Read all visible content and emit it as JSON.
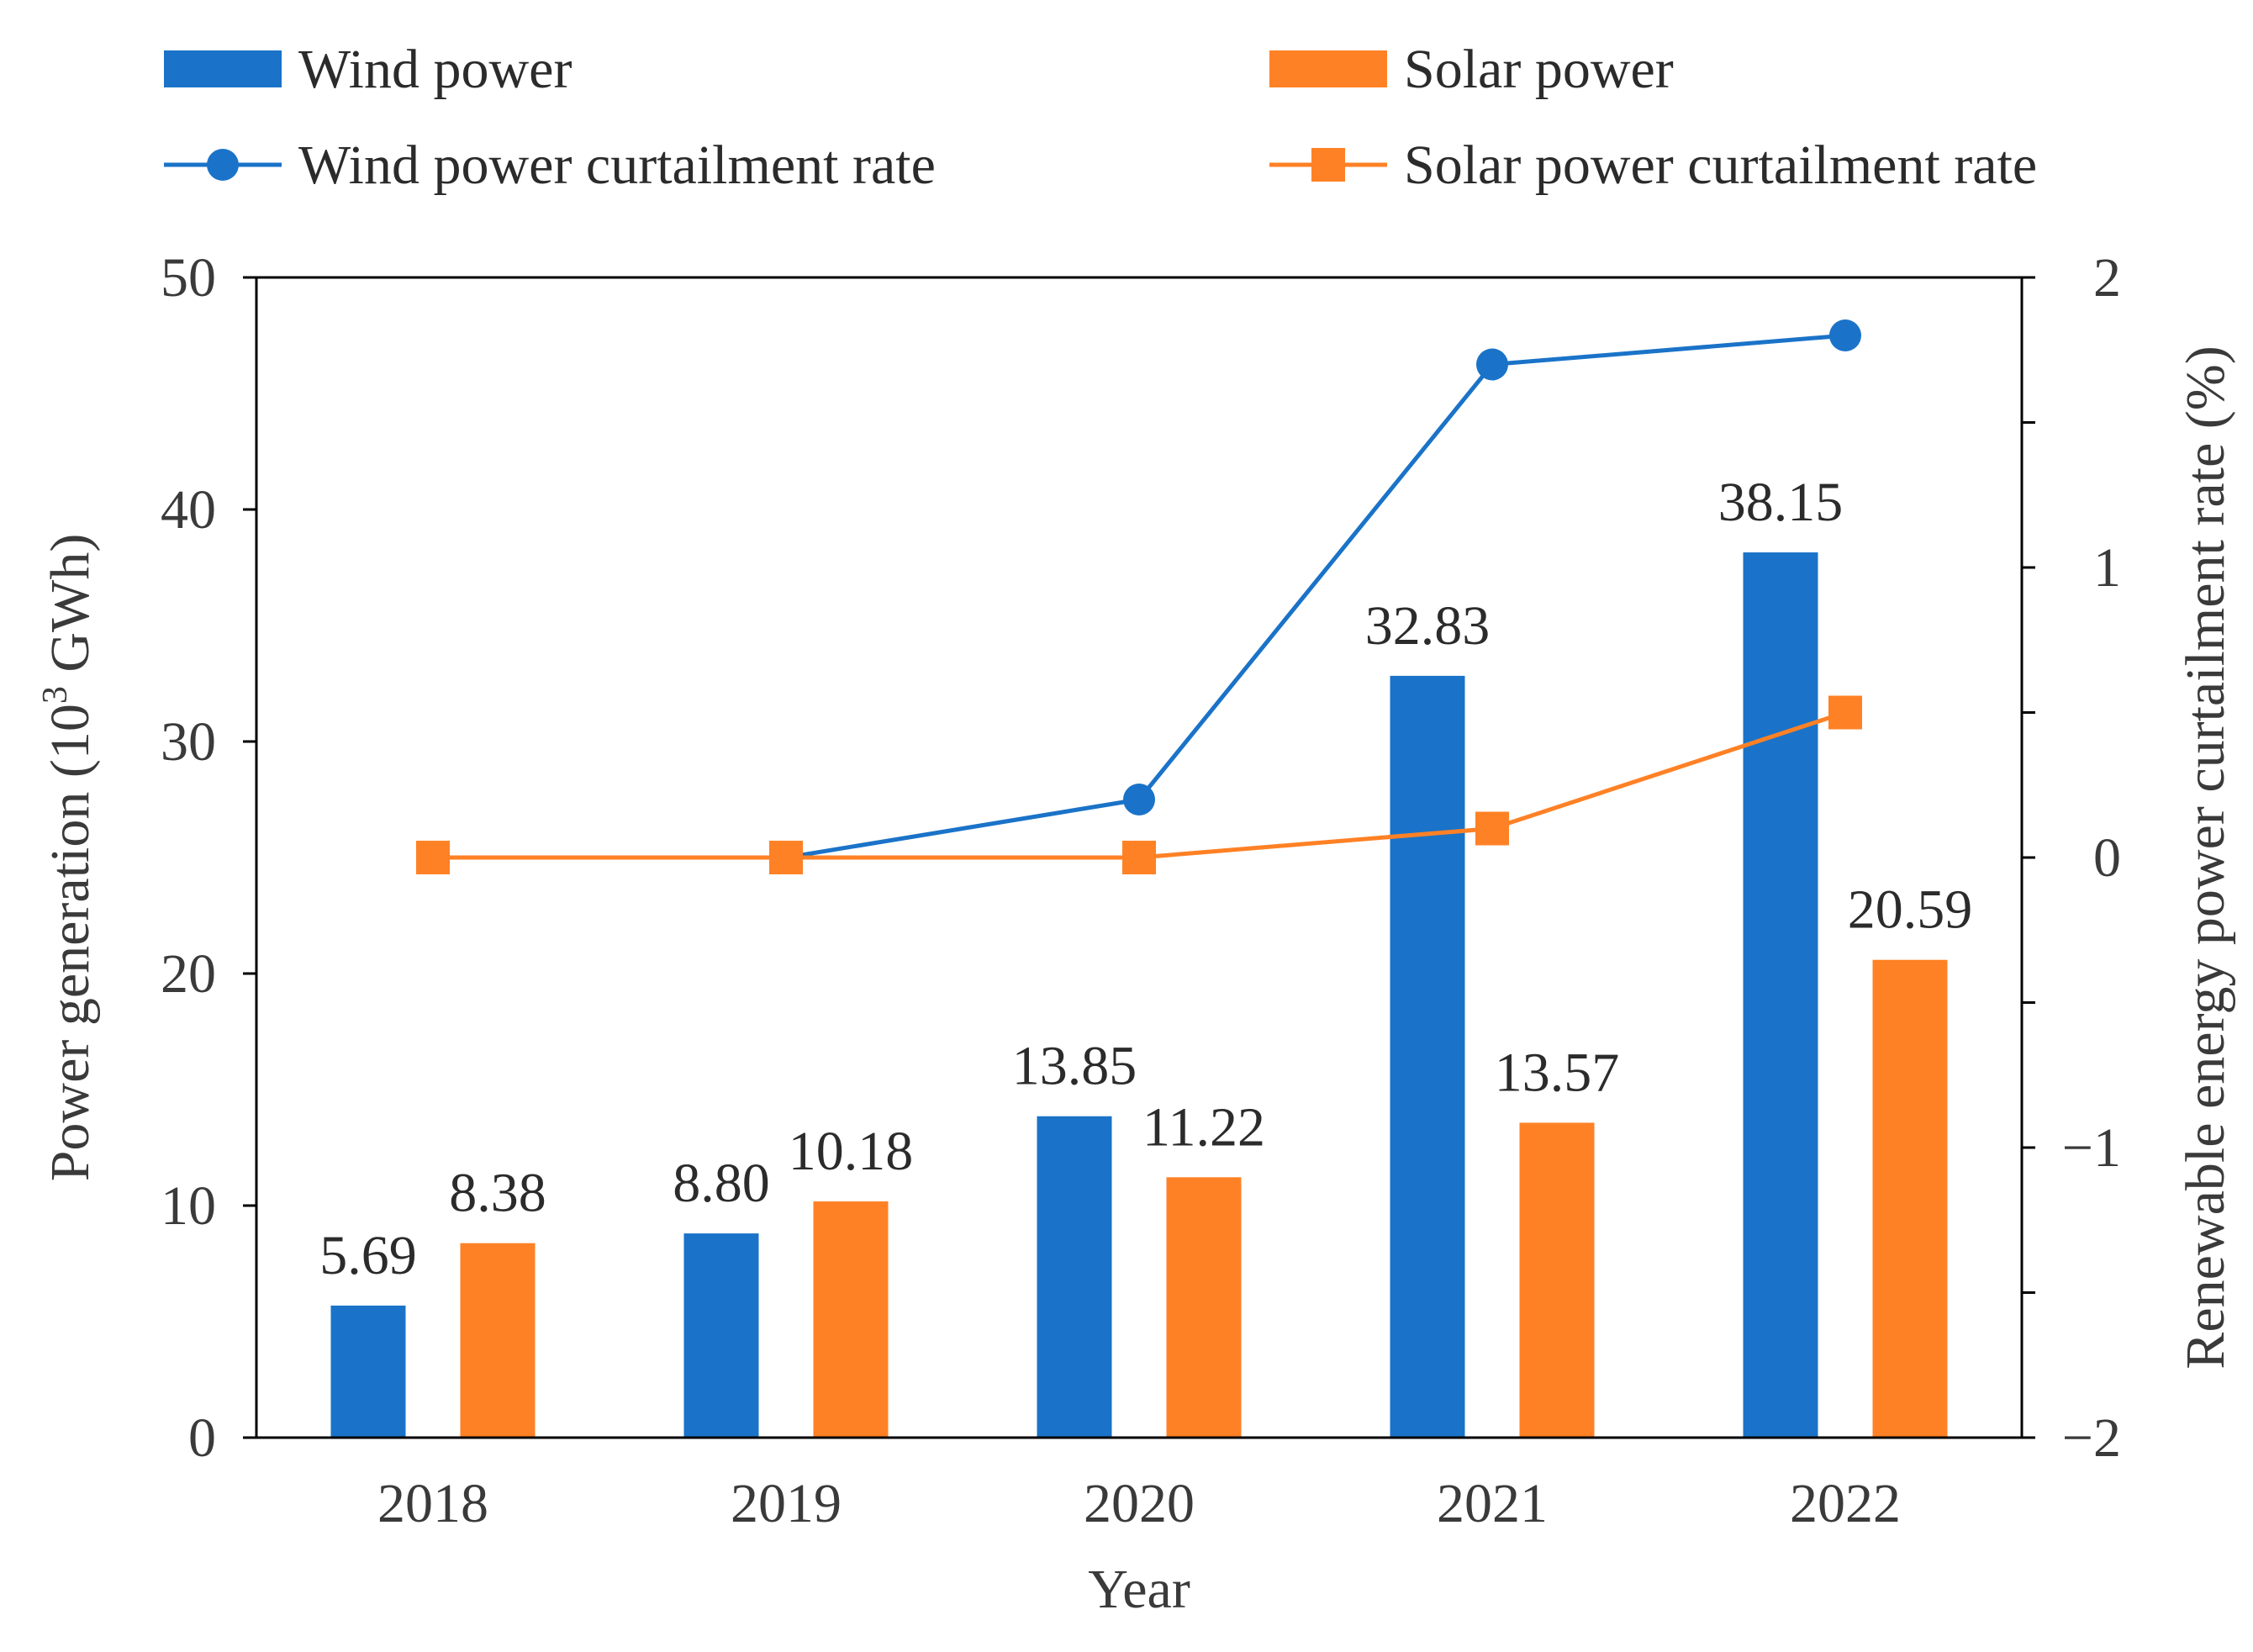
{
  "chart_data": {
    "type": "bar",
    "categories": [
      "2018",
      "2019",
      "2020",
      "2021",
      "2022"
    ],
    "series": [
      {
        "name": "Wind power",
        "kind": "bar",
        "axis": "left",
        "color": "#1a73c8",
        "values": [
          5.69,
          8.8,
          13.85,
          32.83,
          38.15
        ],
        "labels": [
          "5.69",
          "8.80",
          "13.85",
          "32.83",
          "38.15"
        ]
      },
      {
        "name": "Solar power",
        "kind": "bar",
        "axis": "left",
        "color": "#ff8125",
        "values": [
          8.38,
          10.18,
          11.22,
          13.57,
          20.59
        ],
        "labels": [
          "8.38",
          "10.18",
          "11.22",
          "13.57",
          "20.59"
        ]
      },
      {
        "name": "Wind power curtailment rate",
        "kind": "line",
        "marker": "circle",
        "axis": "right",
        "color": "#1a73c8",
        "values": [
          null,
          0.0,
          0.2,
          1.7,
          1.8
        ]
      },
      {
        "name": "Solar power curtailment rate",
        "kind": "line",
        "marker": "square",
        "axis": "right",
        "color": "#ff8125",
        "values": [
          0.0,
          0.0,
          0.0,
          0.1,
          0.5
        ]
      }
    ],
    "xlabel": "Year",
    "ylabel_parts": {
      "before": "Power generation (10",
      "superscript": "3",
      "after": " GWh)"
    },
    "y2label": "Renewable energy power curtailment rate (%)",
    "ylim": [
      0,
      50
    ],
    "yticks": [
      0,
      10,
      20,
      30,
      40,
      50
    ],
    "y2lim": [
      -2,
      2
    ],
    "y2ticks": [
      -2,
      -1.5,
      -1,
      -0.5,
      0,
      0.5,
      1,
      1.5,
      2
    ],
    "y2tick_labels": [
      "−2",
      "",
      "−1",
      "",
      "0",
      "",
      "1",
      "",
      "2"
    ],
    "grid": false,
    "legend_position": "top"
  }
}
